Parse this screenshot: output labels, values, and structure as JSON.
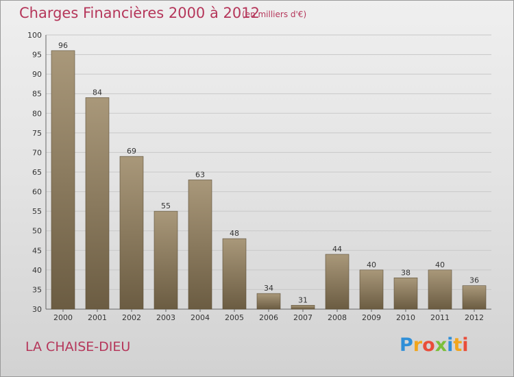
{
  "header": {
    "title": "Charges Financières 2000 à 2012",
    "subtitle": "(en milliers d'€)"
  },
  "footer": {
    "place": "LA CHAISE-DIEU",
    "logo_letters": [
      "P",
      "r",
      "o",
      "x",
      "i",
      "t",
      "i"
    ],
    "logo_colors": [
      "#2f8fd8",
      "#f2a51c",
      "#e94d3a",
      "#7bbf3a",
      "#2f8fd8",
      "#f2a51c",
      "#e94d3a"
    ]
  },
  "colors": {
    "bar_light": "#a9987a",
    "bar_dark": "#6b5c42",
    "grid": "#c8c8c8",
    "title": "#b5365a"
  },
  "chart_data": {
    "type": "bar",
    "title": "Charges Financières 2000 à 2012",
    "subtitle": "(en milliers d'€)",
    "categories": [
      "2000",
      "2001",
      "2002",
      "2003",
      "2004",
      "2005",
      "2006",
      "2007",
      "2008",
      "2009",
      "2010",
      "2011",
      "2012"
    ],
    "values": [
      96,
      84,
      69,
      55,
      63,
      48,
      34,
      31,
      44,
      40,
      38,
      40,
      36
    ],
    "ylim": [
      30,
      100
    ],
    "yticks": [
      30,
      35,
      40,
      45,
      50,
      55,
      60,
      65,
      70,
      75,
      80,
      85,
      90,
      95,
      100
    ],
    "grid": true,
    "legend": "none"
  }
}
